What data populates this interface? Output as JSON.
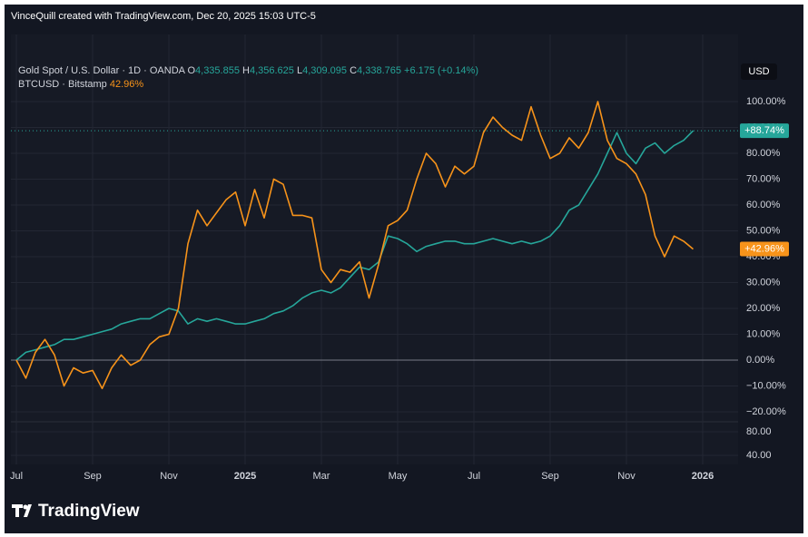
{
  "chart_data": {
    "type": "line",
    "caption": "VinceQuill created with TradingView.com, Dec 20, 2025 15:03 UTC-5",
    "currency": "USD",
    "brand": "TradingView",
    "categories": [
      "Jul",
      null,
      null,
      null,
      null,
      null,
      null,
      null,
      "Sep",
      null,
      null,
      null,
      null,
      null,
      null,
      null,
      "Nov",
      null,
      null,
      null,
      null,
      null,
      null,
      null,
      "2025",
      null,
      null,
      null,
      null,
      null,
      null,
      null,
      "Mar",
      null,
      null,
      null,
      null,
      null,
      null,
      null,
      "May",
      null,
      null,
      null,
      null,
      null,
      null,
      null,
      "Jul",
      null,
      null,
      null,
      null,
      null,
      null,
      null,
      "Sep",
      null,
      null,
      null,
      null,
      null,
      null,
      null,
      "Nov",
      null,
      null,
      null,
      null,
      null,
      null,
      null,
      "2026"
    ],
    "series": [
      {
        "name": "Gold Spot / U.S. Dollar · 1D · OANDA",
        "color": "#26a69a",
        "ohlc": [
          {
            "key": "O",
            "value": "4,335.855"
          },
          {
            "key": "H",
            "value": "4,356.625"
          },
          {
            "key": "L",
            "value": "4,309.095"
          },
          {
            "key": "C",
            "value": "4,338.765"
          }
        ],
        "change": "+6.175 (+0.14%)",
        "badge": "+88.74%",
        "values": [
          0,
          3,
          4,
          5,
          6,
          8,
          8,
          9,
          10,
          11,
          12,
          14,
          15,
          16,
          16,
          18,
          20,
          19,
          14,
          16,
          15,
          16,
          15,
          14,
          14,
          15,
          16,
          18,
          19,
          21,
          24,
          26,
          27,
          26,
          28,
          32,
          36,
          35,
          38,
          48,
          47,
          45,
          42,
          44,
          45,
          46,
          46,
          45,
          45,
          46,
          47,
          46,
          45,
          46,
          45,
          46,
          48,
          52,
          58,
          60,
          66,
          72,
          80,
          88,
          80,
          76,
          82,
          84,
          80,
          83,
          85,
          88.74,
          null
        ]
      },
      {
        "name": "BTCUSD · Bitstamp",
        "color": "#f7931a",
        "legend_value": "42.96%",
        "badge": "+42.96%",
        "values": [
          0,
          -7,
          3,
          8,
          2,
          -10,
          -3,
          -5,
          -4,
          -11,
          -3,
          2,
          -2,
          0,
          6,
          9,
          10,
          20,
          45,
          58,
          52,
          57,
          62,
          65,
          52,
          66,
          55,
          70,
          68,
          56,
          56,
          55,
          35,
          30,
          35,
          34,
          38,
          24,
          37,
          52,
          54,
          58,
          70,
          80,
          76,
          67,
          75,
          72,
          75,
          88,
          94,
          90,
          87,
          85,
          98,
          87,
          78,
          80,
          86,
          82,
          88,
          100,
          85,
          78,
          76,
          72,
          64,
          48,
          40,
          48,
          46,
          42.96,
          null
        ]
      }
    ],
    "ylim": [
      -23.86,
      125.96
    ],
    "yticks": [
      {
        "value": 100,
        "label": "100.00%"
      },
      {
        "value": 90,
        "label": "90.00%"
      },
      {
        "value": 80,
        "label": "80.00%"
      },
      {
        "value": 70,
        "label": "70.00%"
      },
      {
        "value": 60,
        "label": "60.00%"
      },
      {
        "value": 50,
        "label": "50.00%"
      },
      {
        "value": 40,
        "label": "40.00%"
      },
      {
        "value": 30,
        "label": "30.00%"
      },
      {
        "value": 20,
        "label": "20.00%"
      },
      {
        "value": 10,
        "label": "10.00%"
      },
      {
        "value": 0,
        "label": "0.00%"
      },
      {
        "value": -10,
        "label": "−10.00%"
      },
      {
        "value": -20,
        "label": "−20.00%"
      }
    ],
    "y2lim": [
      24.6,
      96.9
    ],
    "y2ticks": [
      {
        "value": 80,
        "label": "80.00"
      },
      {
        "value": 40,
        "label": "40.00"
      }
    ],
    "grid": true
  }
}
